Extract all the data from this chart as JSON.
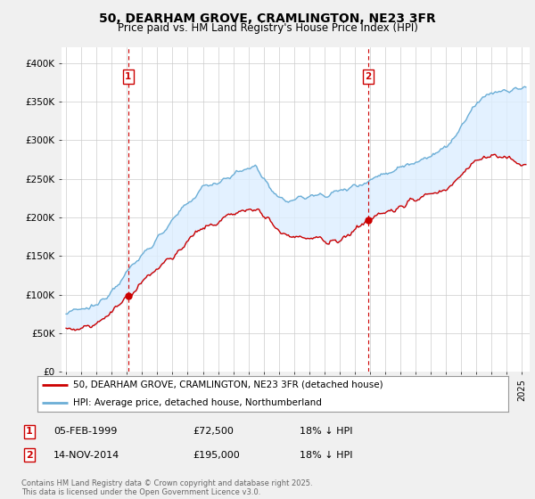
{
  "title": "50, DEARHAM GROVE, CRAMLINGTON, NE23 3FR",
  "subtitle": "Price paid vs. HM Land Registry's House Price Index (HPI)",
  "background_color": "#f0f0f0",
  "plot_bg_color": "#ffffff",
  "fill_color": "#ddeeff",
  "ylim": [
    0,
    420000
  ],
  "yticks": [
    0,
    50000,
    100000,
    150000,
    200000,
    250000,
    300000,
    350000,
    400000
  ],
  "ytick_labels": [
    "£0",
    "£50K",
    "£100K",
    "£150K",
    "£200K",
    "£250K",
    "£300K",
    "£350K",
    "£400K"
  ],
  "hpi_color": "#6baed6",
  "price_color": "#cc0000",
  "vline_color": "#cc0000",
  "marker1_x": 1999.09,
  "marker2_x": 2014.87,
  "marker1_price": 72500,
  "marker2_price": 195000,
  "legend_label1": "50, DEARHAM GROVE, CRAMLINGTON, NE23 3FR (detached house)",
  "legend_label2": "HPI: Average price, detached house, Northumberland",
  "note1_label": "1",
  "note2_label": "2",
  "note1_date": "05-FEB-1999",
  "note1_price": "£72,500",
  "note1_hpi": "18% ↓ HPI",
  "note2_date": "14-NOV-2014",
  "note2_price": "£195,000",
  "note2_hpi": "18% ↓ HPI",
  "footer": "Contains HM Land Registry data © Crown copyright and database right 2025.\nThis data is licensed under the Open Government Licence v3.0."
}
